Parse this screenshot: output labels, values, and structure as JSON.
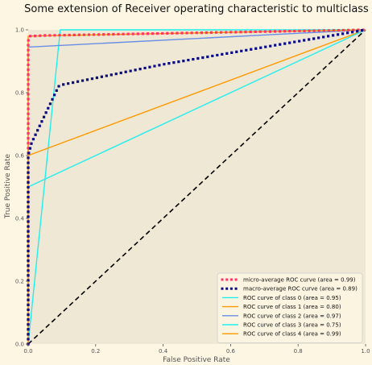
{
  "chart_data": {
    "type": "line",
    "title": "Some extension of Receiver operating characteristic to multiclass",
    "xlabel": "False Positive Rate",
    "ylabel": "True Positive Rate",
    "xlim": [
      0.0,
      1.0
    ],
    "ylim": [
      0.0,
      1.0
    ],
    "x_ticks": [
      "0.0",
      "0.2",
      "0.4",
      "0.6",
      "0.8",
      "1.0"
    ],
    "y_ticks": [
      "0.0",
      "0.2",
      "0.4",
      "0.6",
      "0.8",
      "1.0"
    ],
    "grid": false,
    "legend_position": "lower-right",
    "series": [
      {
        "name": "micro-average ROC curve (area = 0.99)",
        "color": "#ff3366",
        "style": "dotted",
        "points": [
          [
            0.0,
            0.0
          ],
          [
            0.0,
            0.965
          ],
          [
            0.005,
            0.98
          ],
          [
            0.01,
            0.98
          ],
          [
            0.05,
            0.982
          ],
          [
            1.0,
            1.0
          ]
        ]
      },
      {
        "name": "macro-average ROC curve (area = 0.89)",
        "color": "#0b0b80",
        "style": "dotted",
        "points": [
          [
            0.0,
            0.0
          ],
          [
            0.0,
            0.6
          ],
          [
            0.01,
            0.64
          ],
          [
            0.09,
            0.82
          ],
          [
            0.1,
            0.825
          ],
          [
            0.4,
            0.89
          ],
          [
            1.0,
            1.0
          ]
        ]
      },
      {
        "name": "ROC curve of class 0 (area = 0.95)",
        "color": "#22eeee",
        "style": "solid",
        "points": [
          [
            0.0,
            0.0
          ],
          [
            0.095,
            1.0
          ],
          [
            1.0,
            1.0
          ]
        ]
      },
      {
        "name": "ROC curve of class 1 (area = 0.80)",
        "color": "#ff9900",
        "style": "solid",
        "points": [
          [
            0.0,
            0.6
          ],
          [
            1.0,
            1.0
          ]
        ]
      },
      {
        "name": "ROC curve of class 2 (area = 0.97)",
        "color": "#6a8ee6",
        "style": "solid",
        "points": [
          [
            0.0,
            0.0
          ],
          [
            0.0,
            0.945
          ],
          [
            1.0,
            1.0
          ]
        ]
      },
      {
        "name": "ROC curve of class 3 (area = 0.75)",
        "color": "#22eeee",
        "style": "solid",
        "points": [
          [
            0.0,
            0.5
          ],
          [
            1.0,
            1.0
          ]
        ]
      },
      {
        "name": "ROC curve of class 4 (area = 0.99)",
        "color": "#ff9900",
        "style": "solid",
        "points": [
          [
            0.0,
            0.0
          ],
          [
            0.0,
            0.98
          ],
          [
            1.0,
            1.0
          ]
        ]
      }
    ],
    "reference_line": {
      "color": "#000000",
      "style": "dashed",
      "points": [
        [
          0.0,
          0.0
        ],
        [
          1.0,
          1.0
        ]
      ]
    },
    "colors": {
      "figure_bg": "#fdf6e3",
      "plot_bg": "#eee8d5",
      "axis": "#cccccc"
    }
  }
}
